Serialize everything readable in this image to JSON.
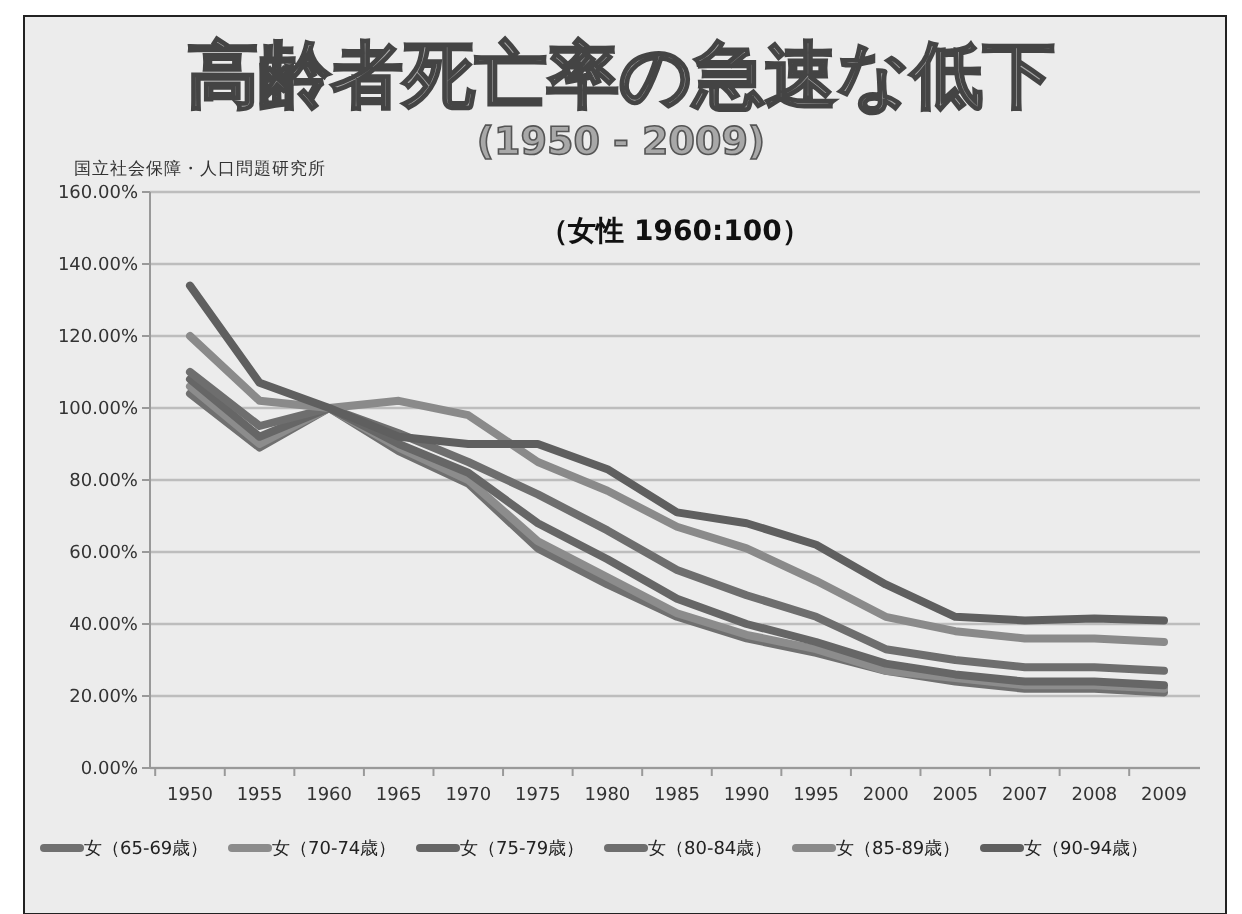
{
  "chart_data": {
    "type": "line",
    "title": "高齢者死亡率の急速な低下",
    "subtitle": "(1950 - 2009)",
    "annotations": [
      "（女性 1960:100）",
      "国立社会保障・人口問題研究所"
    ],
    "categories": [
      "1950",
      "1955",
      "1960",
      "1965",
      "1970",
      "1975",
      "1980",
      "1985",
      "1990",
      "1995",
      "2000",
      "2005",
      "2007",
      "2008",
      "2009"
    ],
    "series": [
      {
        "name": "女（65-69歳）",
        "color": "#707070",
        "values": [
          104,
          89,
          100,
          88,
          79,
          61,
          51,
          42,
          36,
          32,
          27,
          24,
          22,
          22,
          21
        ]
      },
      {
        "name": "女（70-74歳）",
        "color": "#8c8c8c",
        "values": [
          106,
          90,
          100,
          89,
          80,
          63,
          53,
          43,
          37,
          33,
          27,
          25,
          23,
          23,
          22
        ]
      },
      {
        "name": "女（75-79歳）",
        "color": "#666666",
        "values": [
          108,
          92,
          100,
          90,
          82,
          68,
          58,
          47,
          40,
          35,
          29,
          26,
          24,
          24,
          23
        ]
      },
      {
        "name": "女（80-84歳）",
        "color": "#6e6e6e",
        "values": [
          110,
          95,
          100,
          93,
          85,
          76,
          66,
          55,
          48,
          42,
          33,
          30,
          28,
          28,
          27
        ]
      },
      {
        "name": "女（85-89歳）",
        "color": "#8a8a8a",
        "values": [
          120,
          102,
          100,
          102,
          98,
          85,
          77,
          67,
          61,
          52,
          42,
          38,
          36,
          36,
          35
        ]
      },
      {
        "name": "女（90-94歳）",
        "color": "#5f5f5f",
        "values": [
          134,
          107,
          100,
          92,
          90,
          90,
          83,
          71,
          68,
          62,
          51,
          42,
          41,
          41.5,
          41
        ]
      }
    ],
    "ylim": [
      0,
      160
    ],
    "yticks": [
      {
        "value": 0,
        "label": "0.00%"
      },
      {
        "value": 20,
        "label": "20.00%"
      },
      {
        "value": 40,
        "label": "40.00%"
      },
      {
        "value": 60,
        "label": "60.00%"
      },
      {
        "value": 80,
        "label": "80.00%"
      },
      {
        "value": 100,
        "label": "100.00%"
      },
      {
        "value": 120,
        "label": "120.00%"
      },
      {
        "value": 140,
        "label": "140.00%"
      },
      {
        "value": 160,
        "label": "160.00%"
      }
    ],
    "grid": "y",
    "legend": "bottom",
    "marker": "none",
    "line_style": "solid"
  }
}
